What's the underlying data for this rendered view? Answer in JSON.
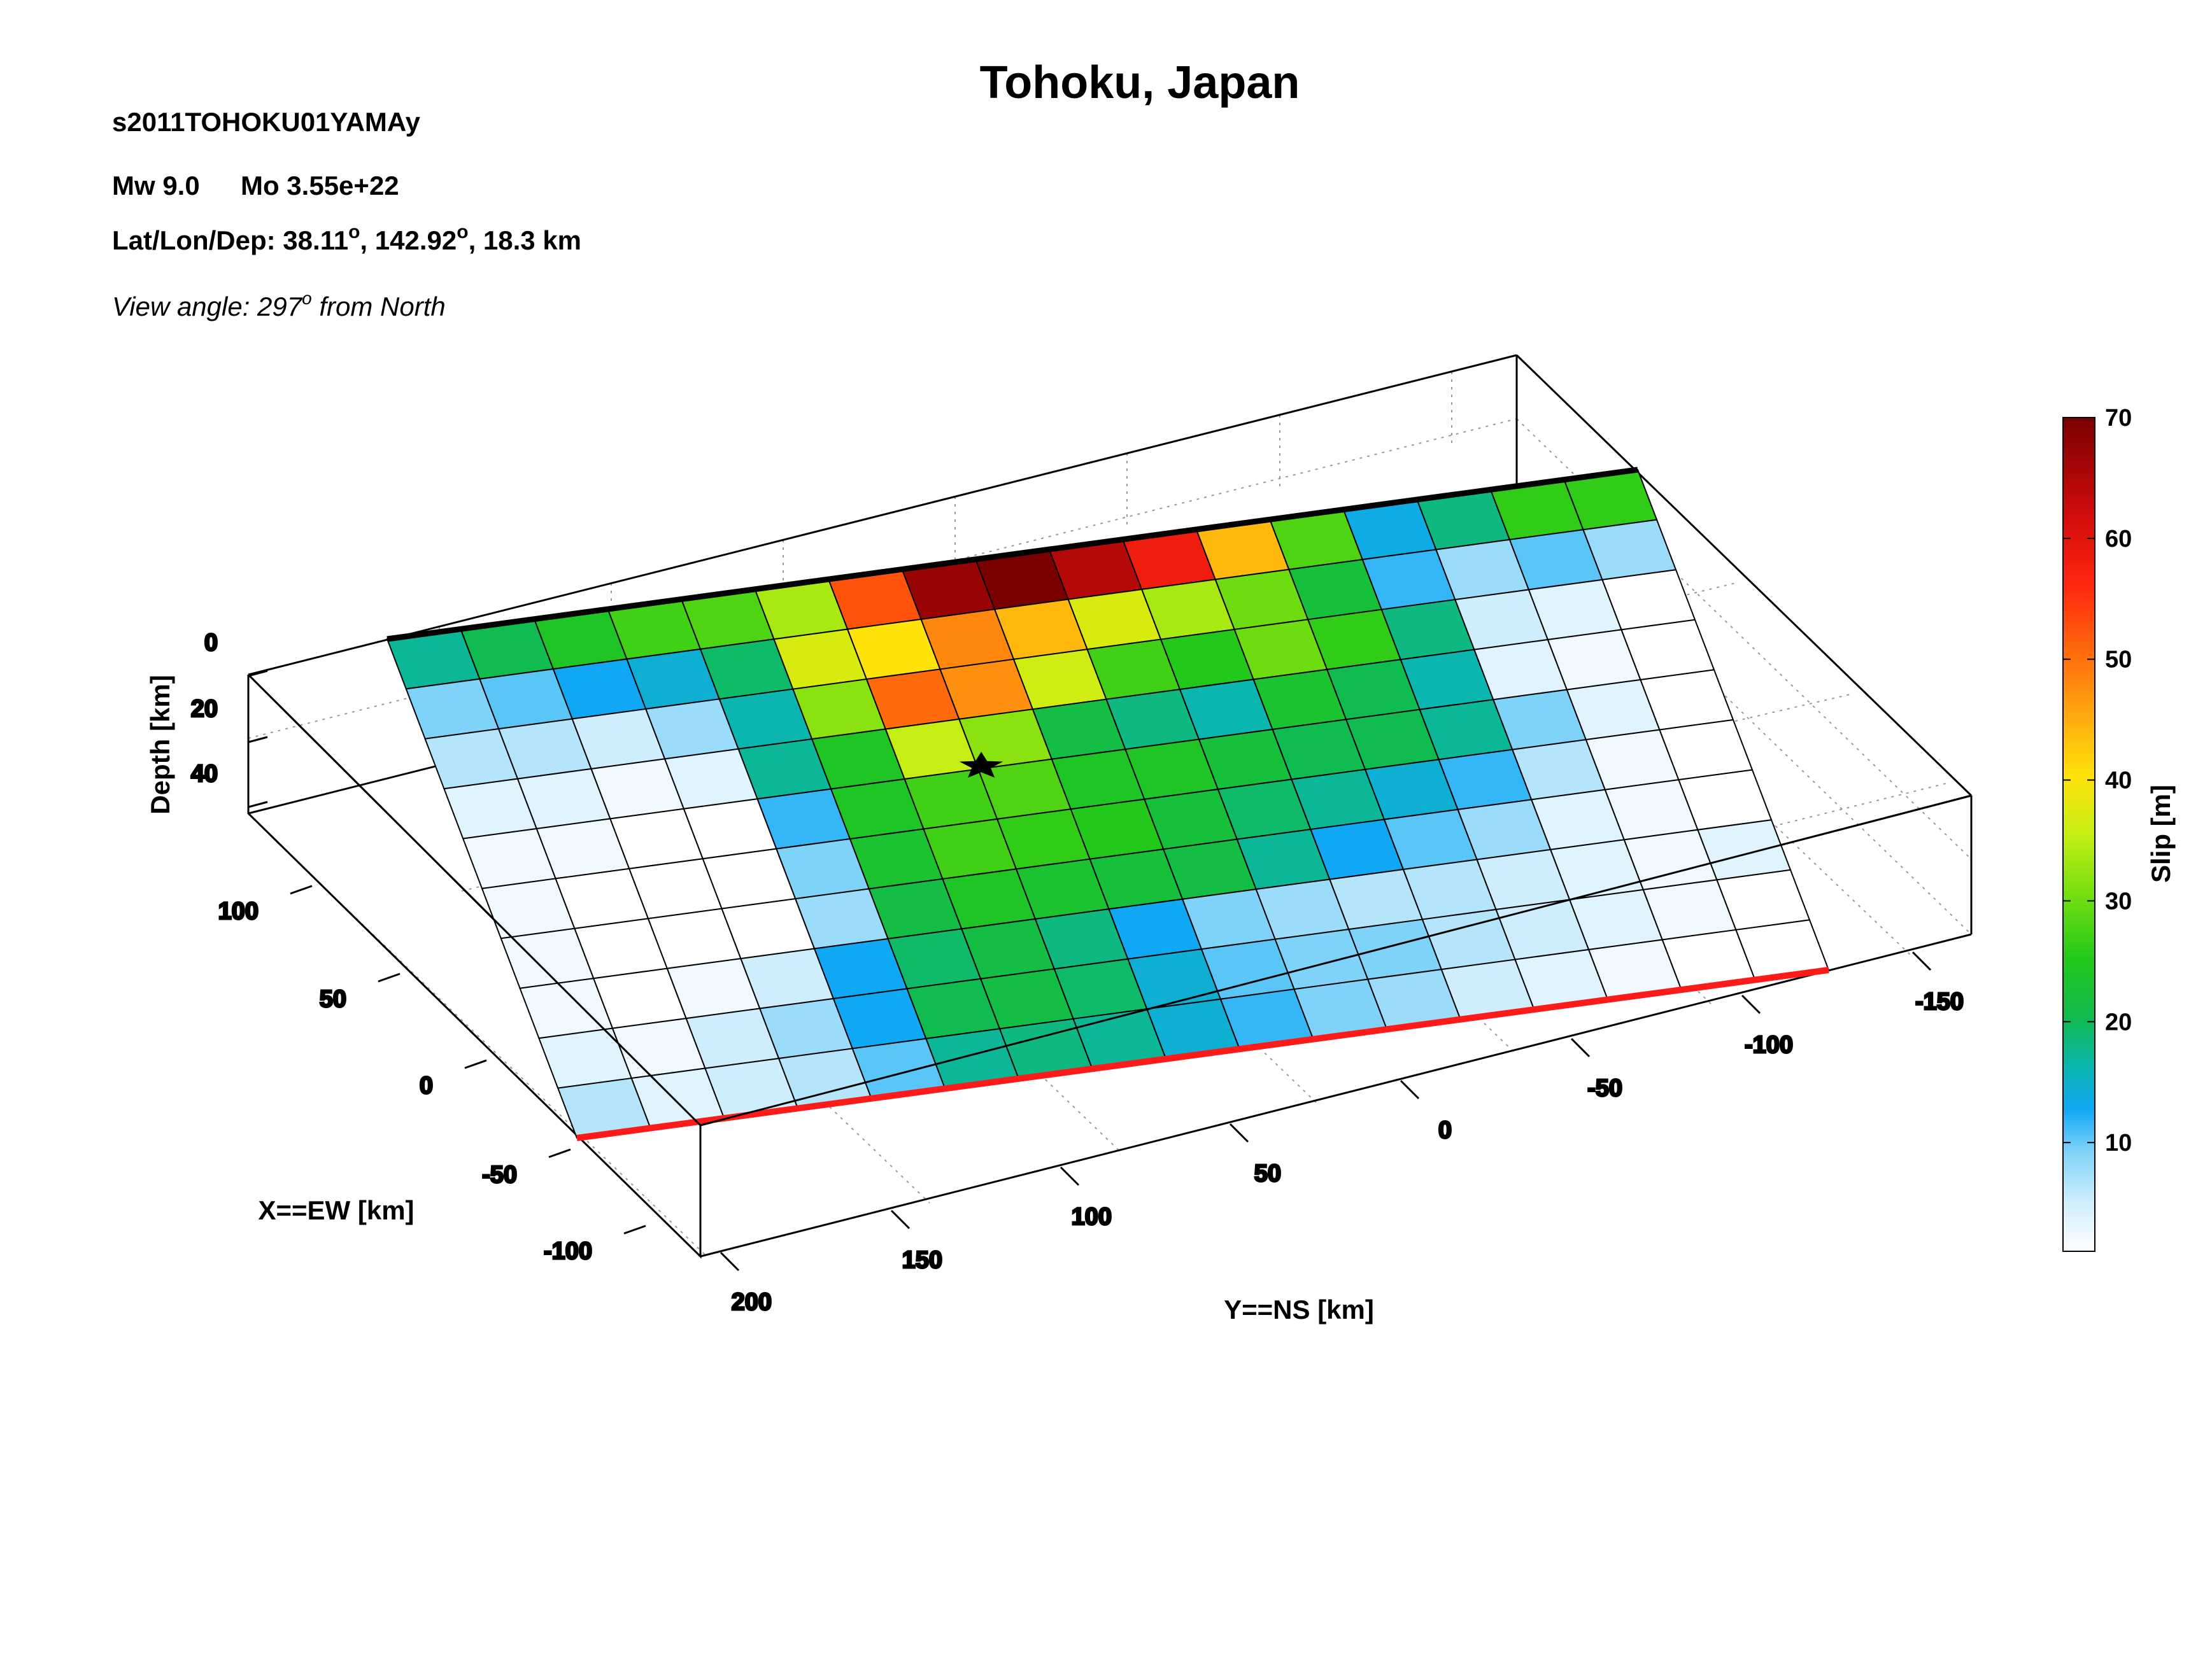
{
  "header": {
    "title": "Tohoku, Japan",
    "model_id": "s2011TOHOKU01YAMAy",
    "mw": "Mw 9.0",
    "mo": "Mo 3.55e+22",
    "latlondep_prefix": "Lat/Lon/Dep: 38.11",
    "latlondep_lon": ", 142.92",
    "latlondep_suffix": ", 18.3 km",
    "degree_mark": "o",
    "view_prefix": "View angle: 297",
    "view_suffix": " from North"
  },
  "chart_data": {
    "type": "heatmap",
    "title": "Tohoku, Japan",
    "axes": {
      "x_label": "X==EW [km]",
      "y_label": "Y==NS [km]",
      "z_label": "Depth [km]",
      "x_ticks": [
        "-100",
        "-50",
        "0",
        "50",
        "100"
      ],
      "y_ticks": [
        "200",
        "150",
        "100",
        "50",
        "0",
        "-50",
        "-100",
        "-150"
      ],
      "z_ticks": [
        "0",
        "20",
        "40"
      ]
    },
    "colorbar": {
      "label": "Slip [m]",
      "ticks": [
        "10",
        "20",
        "30",
        "40",
        "50",
        "60",
        "70"
      ],
      "range": [
        1,
        70
      ]
    },
    "grid_note": "rows from shallow (top edge, along strike) to deep (red bottom edge); columns along strike",
    "slip": [
      [
        15,
        18,
        22,
        25,
        26,
        32,
        54,
        68,
        70,
        66,
        60,
        44,
        26,
        11,
        16,
        24,
        24
      ],
      [
        7,
        8,
        10,
        12,
        17,
        36,
        40,
        49,
        44,
        36,
        32,
        28,
        20,
        9,
        6,
        8,
        6
      ],
      [
        5,
        5,
        4,
        6,
        14,
        30,
        52,
        48,
        35,
        25,
        23,
        28,
        24,
        16,
        4,
        3,
        1
      ],
      [
        3,
        3,
        2,
        3,
        15,
        22,
        34,
        30,
        19,
        16,
        14,
        21,
        18,
        14,
        3,
        2,
        1
      ],
      [
        2,
        2,
        1,
        1,
        9,
        22,
        25,
        26,
        22,
        22,
        20,
        18,
        18,
        15,
        7,
        3,
        1
      ],
      [
        2,
        1,
        1,
        1,
        7,
        21,
        25,
        24,
        23,
        20,
        17,
        15,
        12,
        9,
        5,
        2,
        1
      ],
      [
        2,
        1,
        1,
        1,
        6,
        19,
        22,
        21,
        20,
        19,
        15,
        10,
        8,
        6,
        3,
        2,
        1
      ],
      [
        2,
        1,
        2,
        4,
        10,
        17,
        19,
        16,
        10,
        7,
        6,
        5,
        5,
        4,
        3,
        2,
        3
      ],
      [
        3,
        2,
        4,
        6,
        10,
        18,
        19,
        17,
        12,
        8,
        7,
        7,
        5,
        4,
        3,
        2,
        1
      ],
      [
        5,
        3,
        4,
        5,
        8,
        15,
        16,
        15,
        12,
        9,
        7,
        6,
        4,
        3,
        2,
        1,
        1
      ]
    ],
    "hypocenter": {
      "label": "hypocenter",
      "lat": 38.11,
      "lon": 142.92,
      "depth_km": 18.3
    },
    "colors": {
      "top_edge": "#000000",
      "bottom_edge": "#ff1a1a",
      "grid_lines": "#000000"
    }
  }
}
